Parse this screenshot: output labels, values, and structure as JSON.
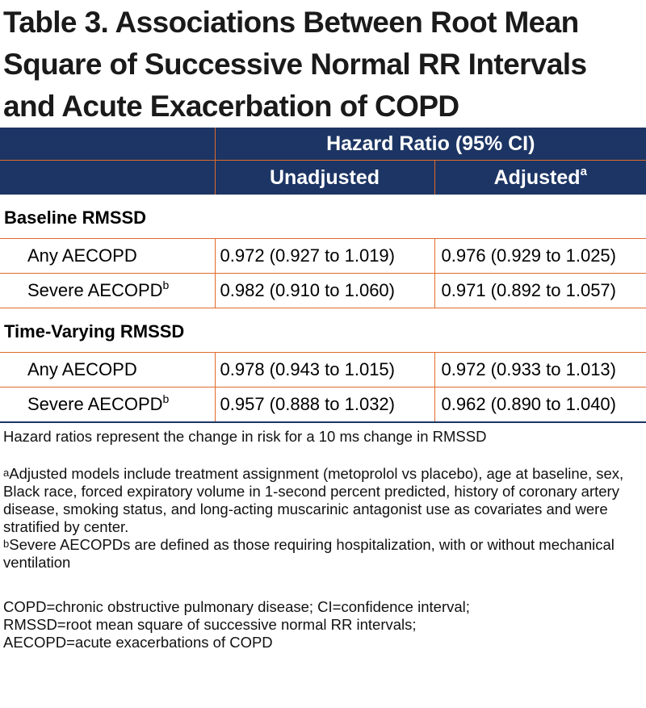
{
  "title_lines": [
    "Table 3. Associations Between Root Mean",
    "Square of Successive Normal RR Intervals",
    "and Acute Exacerbation of COPD"
  ],
  "table": {
    "header_group": "Hazard Ratio (95% CI)",
    "col_unadjusted": "Unadjusted",
    "col_adjusted": "Adjusted",
    "col_adjusted_sup": "a",
    "sections": [
      {
        "label": "Baseline RMSSD",
        "rows": [
          {
            "label": "Any AECOPD",
            "sup": "",
            "unadjusted": "0.972 (0.927 to 1.019)",
            "adjusted": "0.976 (0.929 to 1.025)"
          },
          {
            "label": "Severe AECOPD",
            "sup": "b",
            "unadjusted": "0.982 (0.910 to 1.060)",
            "adjusted": "0.971 (0.892 to 1.057)"
          }
        ]
      },
      {
        "label": "Time-Varying RMSSD",
        "rows": [
          {
            "label": "Any AECOPD",
            "sup": "",
            "unadjusted": "0.978 (0.943 to 1.015)",
            "adjusted": "0.972 (0.933 to 1.013)"
          },
          {
            "label": "Severe AECOPD",
            "sup": "b",
            "unadjusted": "0.957 (0.888 to 1.032)",
            "adjusted": "0.962 (0.890 to 1.040)"
          }
        ]
      }
    ]
  },
  "footnotes": {
    "hazard_note": "Hazard ratios represent the change in risk for a 10 ms change in RMSSD",
    "a_mark": "a",
    "a_text": "Adjusted models include treatment assignment (metoprolol vs placebo), age at baseline, sex, Black race, forced expiratory volume in 1-second percent predicted, history of coronary artery disease, smoking status, and long-acting muscarinic antagonist use as covariates and were stratified by center.",
    "b_mark": "b",
    "b_text": "Severe AECOPDs are defined as those requiring hospitalization, with or without mechanical ventilation",
    "abbrev_lines": [
      "COPD=chronic obstructive pulmonary disease; CI=confidence interval;",
      "RMSSD=root mean square of successive normal RR intervals;",
      "AECOPD=acute exacerbations of COPD"
    ]
  }
}
